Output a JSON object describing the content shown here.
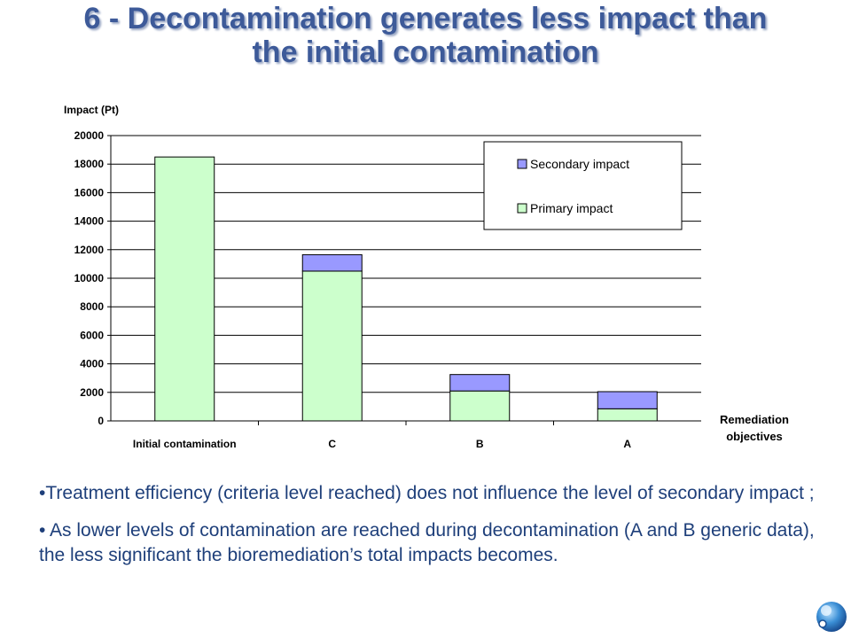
{
  "slide": {
    "title_line1": "6 - Decontamination generates less impact than",
    "title_line2": "the initial contamination"
  },
  "chart_data": {
    "type": "bar",
    "stacked": true,
    "categories": [
      "Initial contamination",
      "C",
      "B",
      "A"
    ],
    "series": [
      {
        "name": "Primary impact",
        "color": "#ccffcc",
        "values": [
          18500,
          10500,
          2100,
          850
        ]
      },
      {
        "name": "Secondary impact",
        "color": "#9999ff",
        "values": [
          0,
          1150,
          1150,
          1200
        ]
      }
    ],
    "ylabel": "Impact (Pt)",
    "xlabel": "Remediation objectives",
    "xlabel_line1": "Remediation",
    "xlabel_line2": "objectives",
    "ylim": [
      0,
      20000
    ],
    "yticks": [
      0,
      2000,
      4000,
      6000,
      8000,
      10000,
      12000,
      14000,
      16000,
      18000,
      20000
    ],
    "grid": true,
    "legend_position": "top-right"
  },
  "bullets": [
    {
      "marker": "•",
      "text": "Treatment efficiency (criteria level reached) does not influence the level of secondary impact ;"
    },
    {
      "marker": "•",
      "text": " As lower levels of contamination are reached during decontamination (A and B generic data), the less significant the bioremediation’s total impacts becomes."
    }
  ],
  "logo": {
    "icon": "globe-logo-icon"
  }
}
